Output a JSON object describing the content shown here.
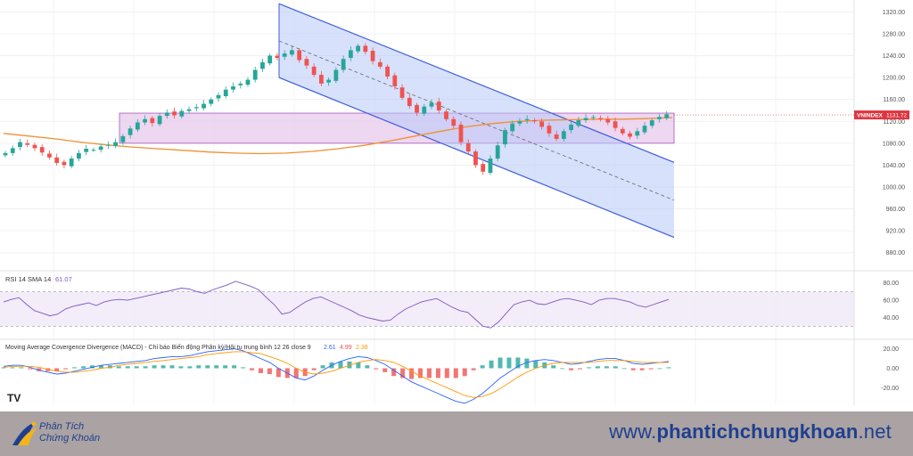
{
  "chart_data": {
    "type": "candlestick",
    "symbol": "VNINDEX",
    "last_price": "1131.72",
    "price_axis": {
      "ticks": [
        "1320.00",
        "1280.00",
        "1240.00",
        "1200.00",
        "1160.00",
        "1120.00",
        "1080.00",
        "1040.00",
        "1000.00",
        "960.00",
        "920.00",
        "880.00"
      ],
      "range": [
        860,
        1332
      ]
    },
    "ohlc_close_approx": [
      1062,
      1071,
      1082,
      1077,
      1071,
      1063,
      1054,
      1044,
      1040,
      1052,
      1062,
      1070,
      1068,
      1074,
      1077,
      1082,
      1093,
      1107,
      1118,
      1124,
      1117,
      1130,
      1136,
      1131,
      1139,
      1142,
      1146,
      1152,
      1160,
      1168,
      1178,
      1184,
      1189,
      1196,
      1214,
      1228,
      1240,
      1236,
      1244,
      1250,
      1232,
      1222,
      1205,
      1189,
      1196,
      1214,
      1234,
      1250,
      1258,
      1247,
      1230,
      1220,
      1202,
      1184,
      1163,
      1148,
      1136,
      1147,
      1154,
      1140,
      1124,
      1112,
      1082,
      1065,
      1040,
      1028,
      1052,
      1076,
      1104,
      1116,
      1120,
      1124,
      1120,
      1110,
      1098,
      1088,
      1102,
      1114,
      1122,
      1126,
      1128,
      1124,
      1118,
      1108,
      1098,
      1092,
      1102,
      1112,
      1122,
      1128,
      1133
    ],
    "sma_200_approx": [
      1098,
      1093,
      1088,
      1082,
      1077,
      1073,
      1070,
      1067,
      1064,
      1062,
      1061,
      1062,
      1065,
      1070,
      1076,
      1084,
      1093,
      1102,
      1110,
      1116,
      1120,
      1122,
      1123,
      1124,
      1124,
      1125,
      1127
    ],
    "support_resistance_zone": [
      1080,
      1135
    ],
    "channel": {
      "upper": [
        [
          1,
          1335
        ],
        [
          64,
          1045
        ]
      ],
      "lower": [
        [
          1,
          1200
        ],
        [
          64,
          908
        ]
      ],
      "mid": [
        [
          1,
          1267
        ],
        [
          64,
          976
        ]
      ]
    },
    "rsi": {
      "label": "RSI 14 SMA 14",
      "value": "61.07",
      "ticks": [
        "80.00",
        "60.00",
        "40.00"
      ],
      "upper_band": 70,
      "lower_band": 30,
      "values_approx": [
        58,
        61,
        63,
        55,
        48,
        45,
        42,
        44,
        50,
        53,
        55,
        57,
        54,
        58,
        60,
        61,
        60,
        62,
        64,
        66,
        68,
        70,
        72,
        74,
        73,
        70,
        68,
        72,
        75,
        78,
        82,
        79,
        76,
        72,
        63,
        55,
        44,
        46,
        52,
        58,
        62,
        64,
        60,
        56,
        52,
        48,
        43,
        40,
        38,
        36,
        37,
        44,
        50,
        54,
        58,
        60,
        62,
        57,
        52,
        48,
        46,
        38,
        30,
        28,
        35,
        45,
        55,
        58,
        60,
        56,
        55,
        58,
        61,
        62,
        60,
        58,
        55,
        60,
        62,
        62,
        60,
        58,
        54,
        52,
        55,
        58,
        61
      ]
    },
    "macd": {
      "label": "Moving Average Covergence Divergence (MACD) - Chỉ báo Biến động Phân kỳ/Hội tụ trung bình 12 26 close 9",
      "values": [
        "2.61",
        "4.99",
        "2.38"
      ],
      "ticks": [
        "20.00",
        "0.00",
        "-20.00"
      ],
      "macd_line_approx": [
        2,
        3,
        3,
        1,
        -2,
        -4,
        -6,
        -5,
        -3,
        -1,
        1,
        3,
        4,
        5,
        6,
        7,
        8,
        10,
        11,
        12,
        12,
        13,
        15,
        17,
        18,
        19,
        20,
        18,
        14,
        10,
        6,
        0,
        -5,
        -10,
        -12,
        -8,
        -2,
        3,
        7,
        10,
        12,
        11,
        8,
        4,
        -2,
        -8,
        -14,
        -18,
        -22,
        -26,
        -30,
        -34,
        -36,
        -32,
        -26,
        -18,
        -10,
        -4,
        2,
        6,
        8,
        9,
        8,
        6,
        4,
        5,
        7,
        9,
        10,
        10,
        8,
        5,
        4,
        5,
        6,
        7
      ],
      "signal_line_approx": [
        1,
        2,
        2,
        2,
        1,
        -1,
        -3,
        -4,
        -4,
        -3,
        -2,
        0,
        1,
        3,
        4,
        5,
        6,
        7,
        8,
        9,
        10,
        11,
        12,
        14,
        15,
        16,
        17,
        17,
        16,
        15,
        12,
        9,
        5,
        0,
        -4,
        -6,
        -5,
        -3,
        0,
        3,
        6,
        8,
        9,
        8,
        6,
        2,
        -3,
        -8,
        -12,
        -16,
        -20,
        -24,
        -28,
        -30,
        -29,
        -26,
        -21,
        -15,
        -9,
        -4,
        0,
        3,
        5,
        6,
        6,
        6,
        6,
        7,
        8,
        8,
        8,
        7,
        6,
        6,
        6,
        6
      ],
      "ylim": [
        -38,
        27
      ]
    }
  },
  "branding": {
    "logo_line1": "Phân Tích",
    "logo_line2": "Chứng Khoán",
    "url_prefix": "www.",
    "url_bold": "phantichchungkhoan",
    "url_suffix": ".net",
    "tv_mark": "TV"
  },
  "colors": {
    "up": "#26a69a",
    "down": "#ef5350",
    "channel_line": "#3d5ed8",
    "channel_fill": "#b8c8f8",
    "zone_fill": "#e7c9ec",
    "zone_border": "#a659b8",
    "sma": "#f09030",
    "rsi_line": "#7e57c2",
    "macd_line": "#2962ff",
    "signal_line": "#ff9800",
    "price_tag": "#e0353f"
  }
}
